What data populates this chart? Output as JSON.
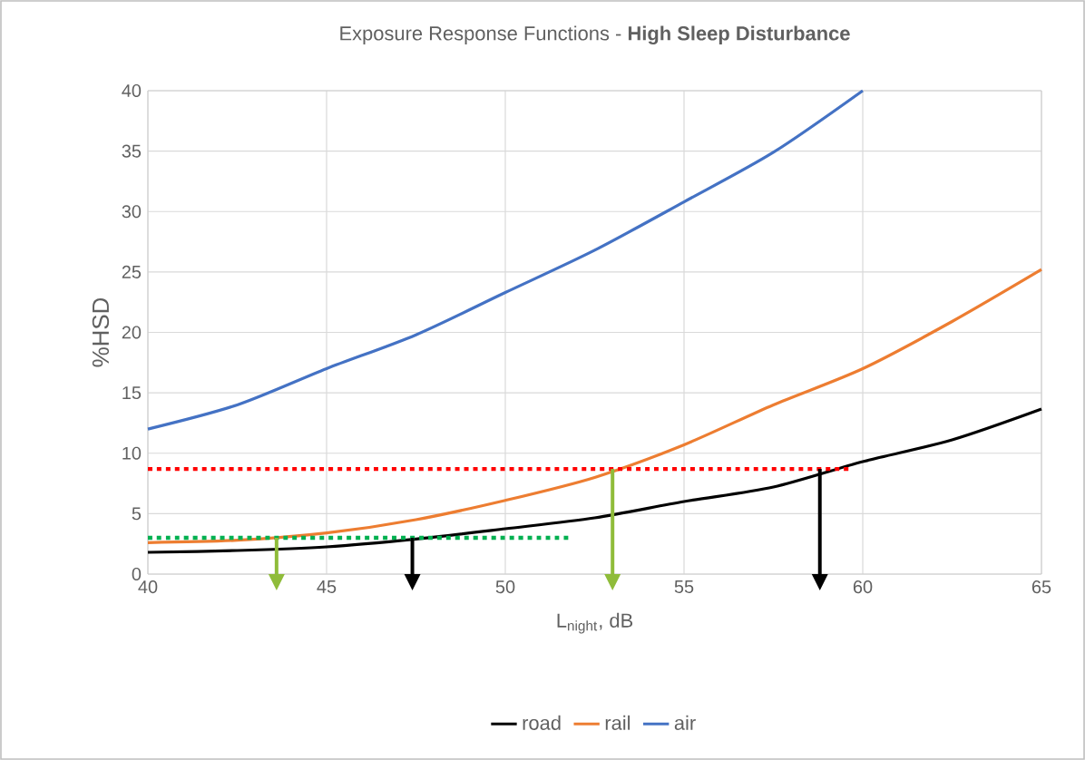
{
  "chart_data": {
    "type": "line",
    "title": "Exposure Response Functions - **High Sleep Disturbance**",
    "xlabel": "L$_{night}$, dB",
    "ylabel": "%HSD",
    "xlim": [
      40,
      65
    ],
    "xticks": [
      40,
      45,
      50,
      55,
      60,
      65
    ],
    "ylim": [
      0,
      40
    ],
    "yticks": [
      0,
      5,
      10,
      15,
      20,
      25,
      30,
      35,
      40
    ],
    "grid": true,
    "legend": "bottom",
    "series": [
      {
        "name": "road",
        "color": "#000000",
        "x": [
          40,
          42.5,
          45,
          47.5,
          50,
          52.5,
          55,
          57.5,
          60,
          62.5,
          65
        ],
        "values": [
          1.8,
          1.95,
          2.25,
          2.9,
          3.75,
          4.65,
          6.0,
          7.2,
          9.3,
          11.1,
          13.65
        ]
      },
      {
        "name": "rail",
        "color": "#ed7d31",
        "x": [
          40,
          42.5,
          45,
          47.5,
          50,
          52.5,
          55,
          57.5,
          60,
          62.5,
          65
        ],
        "values": [
          2.6,
          2.8,
          3.4,
          4.5,
          6.1,
          8.0,
          10.7,
          14.0,
          17.0,
          20.9,
          25.2
        ]
      },
      {
        "name": "air",
        "color": "#4472c4",
        "x": [
          40,
          42.5,
          45,
          47.5,
          50,
          52.5,
          55,
          57.5,
          60
        ],
        "values": [
          12.0,
          14.0,
          17.0,
          19.8,
          23.3,
          26.8,
          30.8,
          34.9,
          40.0
        ]
      },
      {
        "color": "#ff0000",
        "line_style": "dotted",
        "x": [
          40,
          59.6
        ],
        "values": [
          8.7,
          8.7
        ]
      },
      {
        "color": "#00b050",
        "line_style": "dotted",
        "x": [
          40,
          51.8
        ],
        "values": [
          3.0,
          3.0
        ]
      },
      {
        "color": "#8fbc3a",
        "x": [
          43.6,
          43.6
        ],
        "values": [
          0,
          3.0
        ]
      },
      {
        "color": "#000000",
        "x": [
          47.4,
          47.4
        ],
        "values": [
          0,
          3.0
        ]
      },
      {
        "color": "#8fbc3a",
        "x": [
          53.0,
          53.0
        ],
        "values": [
          0,
          8.7
        ]
      },
      {
        "color": "#000000",
        "x": [
          58.8,
          58.8
        ],
        "values": [
          0,
          8.7
        ]
      }
    ]
  }
}
